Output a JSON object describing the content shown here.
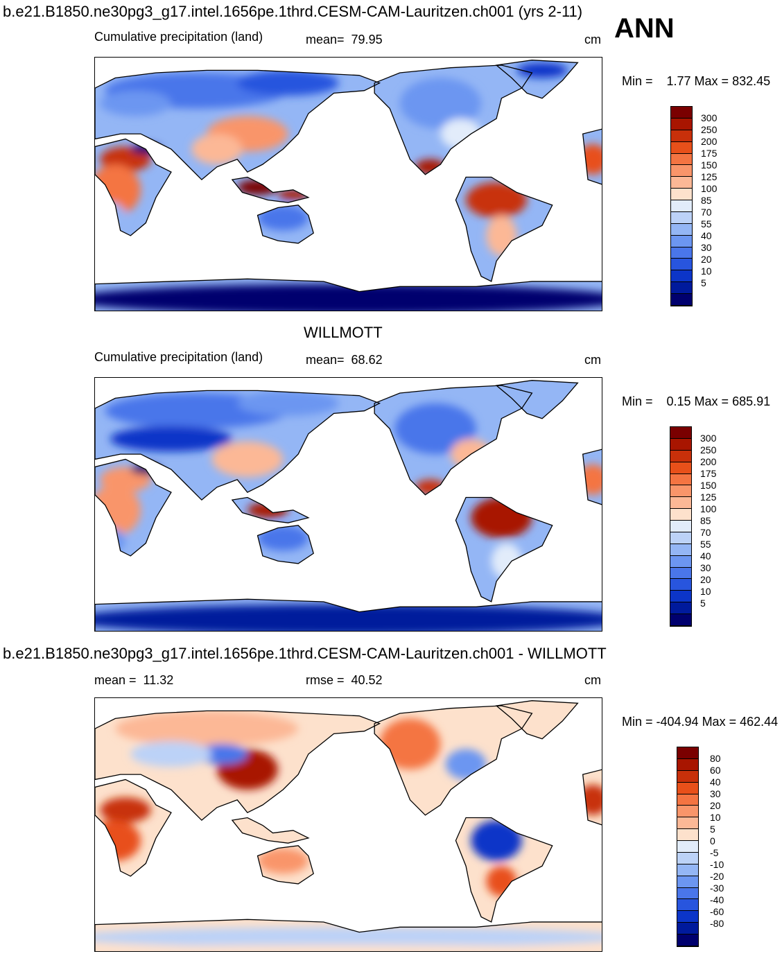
{
  "top_title": "b.e21.B1850.ne30pg3_g17.intel.1656pe.1thrd.CESM-CAM-Lauritzen.ch001 (yrs 2-11)",
  "season": "ANN",
  "panels": [
    {
      "id": "model",
      "title": "",
      "left_label": "Cumulative precipitation (land)",
      "center_label": "mean=  79.95",
      "units": "cm",
      "minmax": "Min =    1.77 Max = 832.45",
      "scheme": "precip"
    },
    {
      "id": "obs",
      "title": "WILLMOTT",
      "left_label": "Cumulative precipitation (land)",
      "center_label": "mean=  68.62",
      "units": "cm",
      "minmax": "Min =    0.15 Max = 685.91",
      "scheme": "precip"
    },
    {
      "id": "diff",
      "title": "b.e21.B1850.ne30pg3_g17.intel.1656pe.1thrd.CESM-CAM-Lauritzen.ch001 - WILLMOTT",
      "left_label": "mean =  11.32",
      "center_label": "rmse =  40.52",
      "units": "cm",
      "minmax": "Min = -404.94 Max = 462.44",
      "scheme": "diff"
    }
  ],
  "colorbars": {
    "precip": {
      "labels": [
        "300",
        "250",
        "200",
        "175",
        "150",
        "125",
        "100",
        "85",
        "70",
        "55",
        "40",
        "30",
        "20",
        "10",
        "5"
      ],
      "colors": [
        "#7a0000",
        "#a81500",
        "#c8300a",
        "#e8501a",
        "#f47442",
        "#f9956a",
        "#fcb896",
        "#fde1cc",
        "#e2ecfa",
        "#bcd2f7",
        "#94b6f5",
        "#6c96f1",
        "#4a76ea",
        "#2855de",
        "#0c35c8",
        "#001a9c",
        "#00006e"
      ]
    },
    "diff": {
      "labels": [
        "80",
        "60",
        "40",
        "30",
        "20",
        "10",
        "5",
        "0",
        "-5",
        "-10",
        "-20",
        "-30",
        "-40",
        "-60",
        "-80"
      ],
      "colors": [
        "#7a0000",
        "#a81500",
        "#c8300a",
        "#e8501a",
        "#f47442",
        "#f9956a",
        "#fcb896",
        "#fde1cc",
        "#e2ecfa",
        "#bcd2f7",
        "#94b6f5",
        "#6c96f1",
        "#4a76ea",
        "#2855de",
        "#0c35c8",
        "#001a9c",
        "#00006e"
      ]
    }
  }
}
